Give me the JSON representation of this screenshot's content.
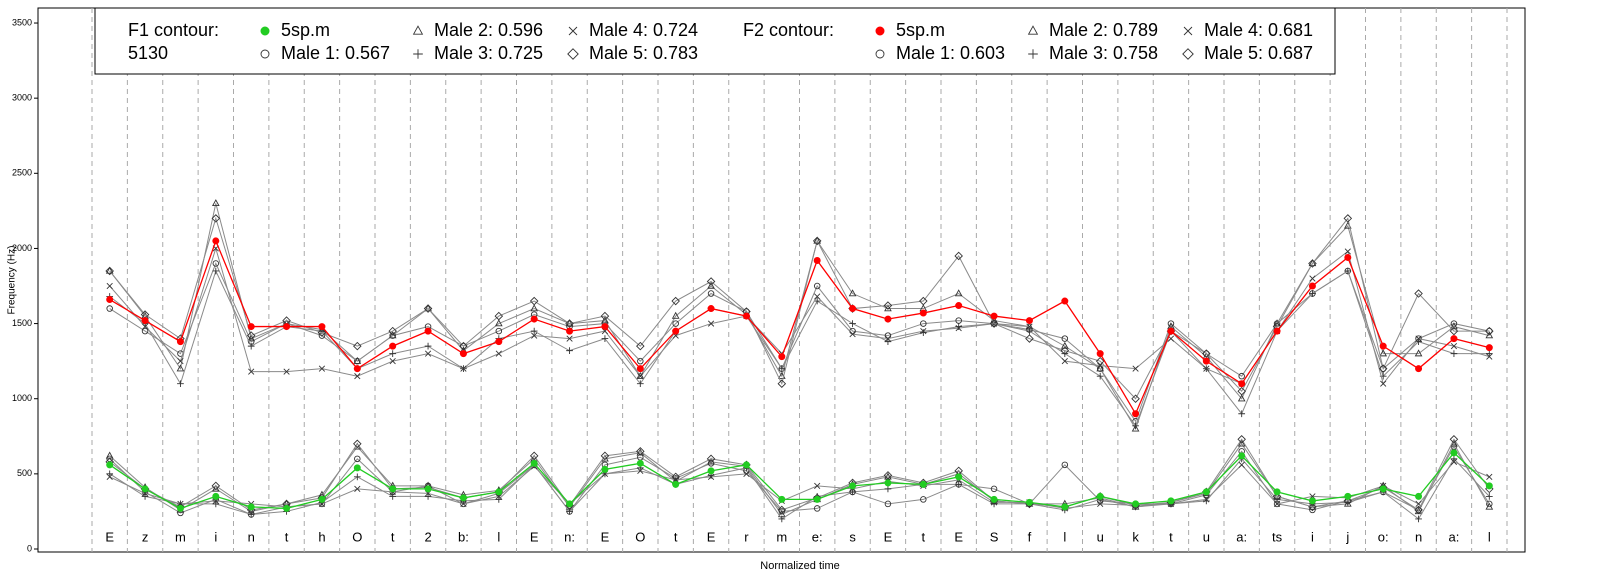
{
  "chart_data": {
    "type": "line",
    "ylabel": "Frequency (Hz)",
    "xlabel": "Normalized time",
    "ylim": [
      -20,
      3600
    ],
    "yticks": [
      0,
      500,
      1000,
      1500,
      2000,
      2500,
      3000,
      3500
    ],
    "categories": [
      "E",
      "z",
      "m",
      "i",
      "n",
      "t",
      "h",
      "O",
      "t",
      "2",
      "b:",
      "l",
      "E",
      "n:",
      "E",
      "O",
      "t",
      "E",
      "r",
      "m",
      "e:",
      "s",
      "E",
      "t",
      "E",
      "S",
      "f",
      "l",
      "u",
      "k",
      "t",
      "u",
      "a:",
      "ts",
      "i",
      "j",
      "o:",
      "n",
      "a:",
      "l"
    ],
    "groups": [
      {
        "title": "F1 contour:",
        "note": "5130",
        "series": [
          {
            "name": "5sp.m",
            "color": "#22cc22",
            "marker": "dot",
            "values": [
              560,
              400,
              270,
              350,
              280,
              270,
              330,
              540,
              400,
              400,
              340,
              380,
              570,
              300,
              530,
              570,
              430,
              520,
              560,
              330,
              330,
              420,
              440,
              430,
              480,
              330,
              310,
              280,
              350,
              300,
              320,
              380,
              620,
              380,
              320,
              350,
              400,
              350,
              640,
              420
            ]
          },
          {
            "name": "Male 1: 0.567",
            "color": "#8a8a8a",
            "marker": "circle",
            "values": [
              600,
              380,
              240,
              330,
              230,
              280,
              300,
              600,
              380,
              420,
              300,
              370,
              560,
              250,
              560,
              610,
              470,
              570,
              520,
              250,
              270,
              380,
              300,
              330,
              430,
              400,
              300,
              560,
              320,
              300,
              300,
              360,
              650,
              300,
              260,
              320,
              380,
              260,
              680,
              300
            ]
          },
          {
            "name": "Male 2: 0.596",
            "color": "#8a8a8a",
            "marker": "triangle",
            "values": [
              620,
              410,
              260,
              400,
              250,
              300,
              360,
              680,
              420,
              420,
              360,
              390,
              600,
              280,
              600,
              640,
              450,
              580,
              550,
              230,
              330,
              430,
              480,
              430,
              500,
              320,
              300,
              300,
              340,
              280,
              310,
              370,
              700,
              350,
              280,
              300,
              420,
              250,
              700,
              280
            ]
          },
          {
            "name": "Male 3: 0.725",
            "color": "#8a8a8a",
            "marker": "plus",
            "values": [
              500,
              350,
              300,
              300,
              230,
              250,
              310,
              480,
              350,
              350,
              320,
              330,
              560,
              250,
              500,
              540,
              430,
              490,
              540,
              200,
              350,
              380,
              400,
              430,
              430,
              300,
              300,
              260,
              330,
              280,
              300,
              320,
              600,
              330,
              300,
              310,
              380,
              200,
              600,
              350
            ]
          },
          {
            "name": "Male 4: 0.724",
            "color": "#8a8a8a",
            "marker": "x",
            "values": [
              480,
              370,
              300,
              320,
              300,
              280,
              300,
              400,
              380,
              370,
              300,
              350,
              550,
              300,
              500,
              520,
              460,
              480,
              500,
              320,
              420,
              400,
              450,
              420,
              460,
              310,
              310,
              270,
              300,
              290,
              300,
              330,
              560,
              300,
              350,
              340,
              420,
              300,
              580,
              480
            ]
          },
          {
            "name": "Male 5: 0.783",
            "color": "#8a8a8a",
            "marker": "diamond",
            "values": [
              580,
              400,
              280,
              420,
              260,
              300,
              340,
              700,
              400,
              410,
              340,
              380,
              620,
              290,
              620,
              650,
              480,
              600,
              560,
              260,
              340,
              440,
              490,
              440,
              520,
              320,
              300,
              280,
              350,
              290,
              310,
              380,
              730,
              350,
              280,
              320,
              410,
              260,
              730,
              400
            ]
          }
        ]
      },
      {
        "title": "F2 contour:",
        "series": [
          {
            "name": "5sp.m",
            "color": "#ff0000",
            "marker": "dot",
            "values": [
              1660,
              1520,
              1380,
              2050,
              1480,
              1480,
              1480,
              1200,
              1350,
              1450,
              1300,
              1380,
              1530,
              1450,
              1480,
              1200,
              1450,
              1600,
              1550,
              1280,
              1920,
              1600,
              1530,
              1570,
              1620,
              1550,
              1520,
              1650,
              1300,
              900,
              1450,
              1250,
              1100,
              1450,
              1750,
              1940,
              1350,
              1200,
              1400,
              1340
            ]
          },
          {
            "name": "Male 1: 0.603",
            "color": "#8a8a8a",
            "marker": "circle",
            "values": [
              1600,
              1450,
              1300,
              1900,
              1380,
              1500,
              1420,
              1250,
              1420,
              1480,
              1350,
              1450,
              1560,
              1480,
              1500,
              1250,
              1500,
              1700,
              1580,
              1200,
              1750,
              1450,
              1420,
              1500,
              1520,
              1500,
              1460,
              1400,
              1200,
              850,
              1500,
              1300,
              1150,
              1500,
              1700,
              1850,
              1200,
              1400,
              1500,
              1450
            ]
          },
          {
            "name": "Male 2: 0.789",
            "color": "#8a8a8a",
            "marker": "triangle",
            "values": [
              1850,
              1550,
              1200,
              2300,
              1400,
              1500,
              1460,
              1250,
              1420,
              1600,
              1320,
              1500,
              1600,
              1500,
              1520,
              1150,
              1550,
              1750,
              1560,
              1150,
              2050,
              1700,
              1600,
              1600,
              1700,
              1520,
              1480,
              1350,
              1200,
              800,
              1480,
              1280,
              1000,
              1500,
              1900,
              2150,
              1300,
              1300,
              1480,
              1420
            ]
          },
          {
            "name": "Male 3: 0.758",
            "color": "#8a8a8a",
            "marker": "plus",
            "values": [
              1680,
              1500,
              1100,
              1850,
              1350,
              1480,
              1450,
              1200,
              1300,
              1350,
              1200,
              1400,
              1450,
              1320,
              1400,
              1100,
              1450,
              1600,
              1550,
              1200,
              1650,
              1500,
              1380,
              1440,
              1480,
              1500,
              1450,
              1300,
              1150,
              820,
              1450,
              1200,
              900,
              1450,
              1700,
              1850,
              1150,
              1380,
              1300,
              1300
            ]
          },
          {
            "name": "Male 4: 0.681",
            "color": "#8a8a8a",
            "marker": "x",
            "values": [
              1750,
              1480,
              1250,
              2000,
              1180,
              1180,
              1200,
              1150,
              1250,
              1300,
              1200,
              1300,
              1420,
              1400,
              1450,
              1150,
              1420,
              1500,
              1550,
              1300,
              1680,
              1430,
              1400,
              1450,
              1470,
              1500,
              1480,
              1250,
              1220,
              1200,
              1400,
              1200,
              1100,
              1450,
              1800,
              1980,
              1100,
              1400,
              1350,
              1280
            ]
          },
          {
            "name": "Male 5: 0.687",
            "color": "#8a8a8a",
            "marker": "diamond",
            "values": [
              1850,
              1560,
              1400,
              2200,
              1420,
              1520,
              1440,
              1350,
              1450,
              1600,
              1350,
              1550,
              1650,
              1500,
              1550,
              1350,
              1650,
              1780,
              1580,
              1100,
              2050,
              1600,
              1620,
              1650,
              1950,
              1500,
              1400,
              1320,
              1250,
              1000,
              1450,
              1300,
              1050,
              1480,
              1900,
              2200,
              1200,
              1700,
              1450,
              1450
            ]
          }
        ]
      }
    ]
  }
}
